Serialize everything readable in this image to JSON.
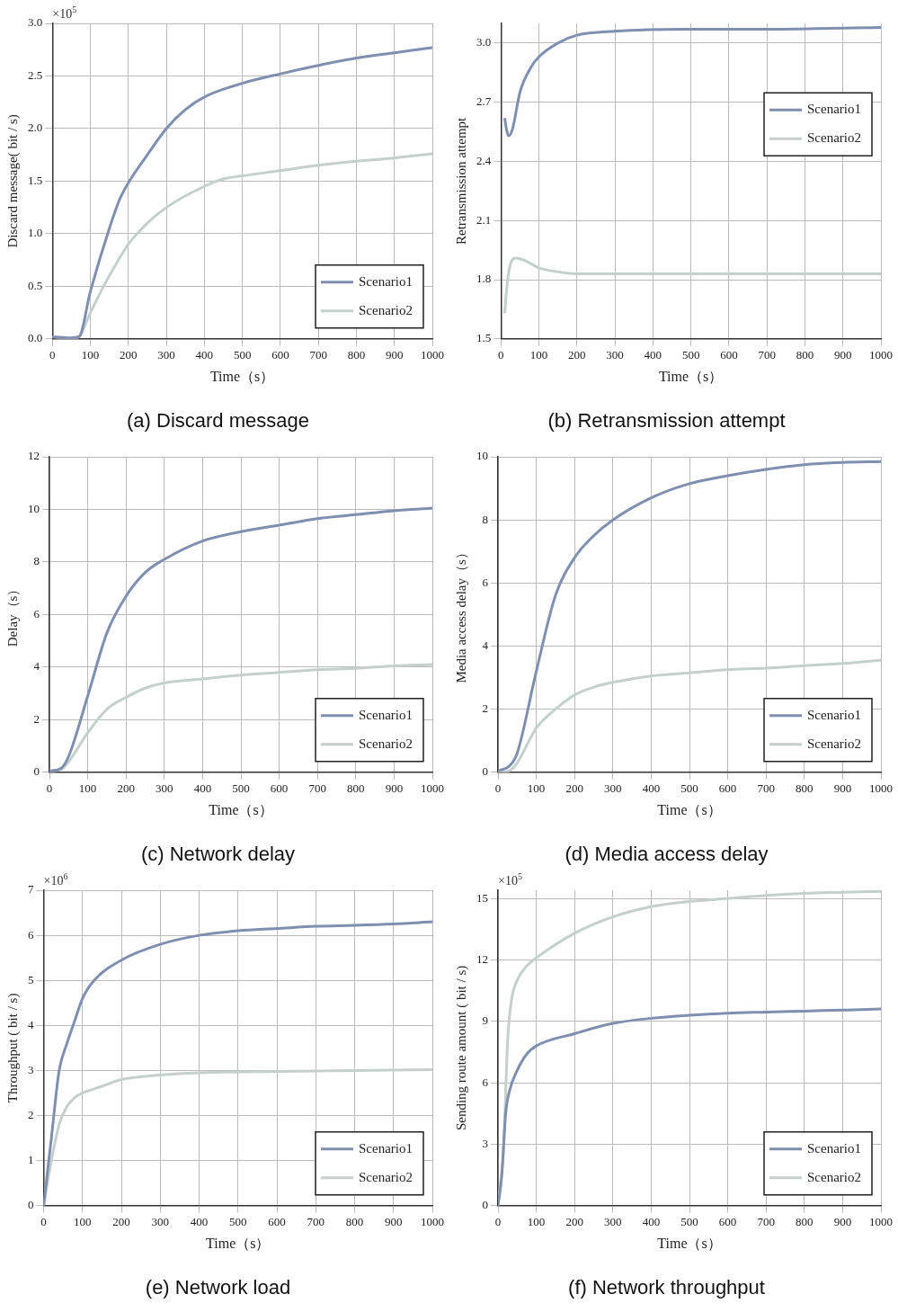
{
  "chart_data": [
    {
      "type": "line",
      "title": "(a) Discard message",
      "xlabel": "Time（s）",
      "ylabel": "Discard message( bit / s)",
      "annotations": [
        "×10$^{5}$"
      ],
      "xlim": [
        0,
        1000
      ],
      "xticks": [
        0,
        100,
        200,
        300,
        400,
        500,
        600,
        700,
        800,
        900,
        1000
      ],
      "ylim": [
        0,
        3
      ],
      "yticks": [
        {
          "value": 0,
          "label": "0.0"
        },
        0.5,
        {
          "value": 1,
          "label": "1.0"
        },
        1.5,
        {
          "value": 2,
          "label": "2.0"
        },
        2.5,
        {
          "value": 3,
          "label": "3.0"
        }
      ],
      "grid": true,
      "legend": "bottom right",
      "series": [
        {
          "name": "Scenario1",
          "color": "#7f8fb0",
          "x": [
            0,
            50,
            70,
            100,
            150,
            180,
            250,
            300,
            350,
            400,
            500,
            600,
            700,
            800,
            900,
            1000
          ],
          "values": [
            0.02,
            0.01,
            0.02,
            0.45,
            1.05,
            1.35,
            1.75,
            2.0,
            2.18,
            2.3,
            2.43,
            2.52,
            2.6,
            2.67,
            2.72,
            2.77
          ]
        },
        {
          "name": "Scenario2",
          "color": "#c5cfcc",
          "x": [
            0,
            50,
            70,
            100,
            150,
            200,
            250,
            300,
            400,
            450,
            500,
            600,
            700,
            800,
            900,
            1000
          ],
          "values": [
            0.02,
            0.0,
            0.02,
            0.25,
            0.6,
            0.9,
            1.1,
            1.25,
            1.45,
            1.52,
            1.55,
            1.6,
            1.65,
            1.69,
            1.72,
            1.76
          ]
        }
      ]
    },
    {
      "type": "line",
      "title": "(b) Retransmission attempt",
      "xlabel": "Time（s）",
      "ylabel": "Retransmission attempt",
      "xlim": [
        0,
        1000
      ],
      "xticks": [
        0,
        100,
        200,
        300,
        400,
        500,
        600,
        700,
        800,
        900,
        1000
      ],
      "ylim": [
        1.5,
        3.1
      ],
      "yticks": [
        1.5,
        1.8,
        2.1,
        2.4,
        2.7,
        {
          "value": 3,
          "label": "3.0"
        }
      ],
      "grid": true,
      "legend": "right",
      "series": [
        {
          "name": "Scenario1",
          "color": "#7f8fb0",
          "x": [
            10,
            15,
            20,
            30,
            50,
            80,
            100,
            150,
            200,
            300,
            500,
            700,
            1000
          ],
          "values": [
            2.62,
            2.56,
            2.53,
            2.56,
            2.75,
            2.88,
            2.93,
            3.0,
            3.04,
            3.06,
            3.07,
            3.07,
            3.08
          ]
        },
        {
          "name": "Scenario2",
          "color": "#c5cfcc",
          "x": [
            10,
            15,
            25,
            40,
            60,
            100,
            150,
            200,
            500,
            1000
          ],
          "values": [
            1.63,
            1.75,
            1.88,
            1.91,
            1.9,
            1.86,
            1.84,
            1.83,
            1.83,
            1.83
          ]
        }
      ]
    },
    {
      "type": "line",
      "title": "(c) Network delay",
      "xlabel": "Time（s）",
      "ylabel": "Delay（s）",
      "xlim": [
        0,
        1000
      ],
      "xticks": [
        0,
        100,
        200,
        300,
        400,
        500,
        600,
        700,
        800,
        900,
        1000
      ],
      "ylim": [
        0,
        12
      ],
      "yticks": [
        0,
        2,
        4,
        6,
        8,
        10,
        12
      ],
      "grid": true,
      "legend": "bottom right",
      "series": [
        {
          "name": "Scenario1",
          "color": "#7f8fb0",
          "x": [
            0,
            30,
            50,
            100,
            150,
            200,
            250,
            300,
            400,
            500,
            600,
            700,
            800,
            900,
            1000
          ],
          "values": [
            0.05,
            0.15,
            0.6,
            2.9,
            5.3,
            6.7,
            7.6,
            8.1,
            8.8,
            9.15,
            9.4,
            9.65,
            9.8,
            9.95,
            10.05
          ]
        },
        {
          "name": "Scenario2",
          "color": "#c5cfcc",
          "x": [
            0,
            30,
            50,
            100,
            150,
            200,
            250,
            300,
            400,
            500,
            600,
            700,
            800,
            900,
            1000
          ],
          "values": [
            0.05,
            0.1,
            0.4,
            1.5,
            2.4,
            2.85,
            3.2,
            3.4,
            3.55,
            3.7,
            3.8,
            3.9,
            3.95,
            4.05,
            4.1
          ]
        }
      ]
    },
    {
      "type": "line",
      "title": "(d) Media access delay",
      "xlabel": "Time（s）",
      "ylabel": "Media access delay（s）",
      "xlim": [
        0,
        1000
      ],
      "xticks": [
        0,
        100,
        200,
        300,
        400,
        500,
        600,
        700,
        800,
        900,
        1000
      ],
      "ylim": [
        0,
        10
      ],
      "yticks": [
        0,
        2,
        4,
        6,
        8,
        10
      ],
      "grid": true,
      "legend": "bottom right",
      "series": [
        {
          "name": "Scenario1",
          "color": "#7f8fb0",
          "x": [
            0,
            30,
            50,
            100,
            150,
            200,
            250,
            300,
            400,
            500,
            600,
            700,
            800,
            900,
            1000
          ],
          "values": [
            0.05,
            0.2,
            0.6,
            3.2,
            5.6,
            6.8,
            7.5,
            8.0,
            8.7,
            9.15,
            9.4,
            9.6,
            9.75,
            9.82,
            9.85
          ]
        },
        {
          "name": "Scenario2",
          "color": "#c5cfcc",
          "x": [
            0,
            30,
            50,
            100,
            150,
            200,
            250,
            300,
            400,
            500,
            600,
            700,
            800,
            900,
            1000
          ],
          "values": [
            0,
            0.05,
            0.3,
            1.4,
            2.0,
            2.45,
            2.7,
            2.85,
            3.05,
            3.15,
            3.25,
            3.3,
            3.38,
            3.45,
            3.55
          ]
        }
      ]
    },
    {
      "type": "line",
      "title": "(e) Network load",
      "xlabel": "Time（s）",
      "ylabel": "Throughput ( bit / s)",
      "annotations": [
        "×10$^{6}$"
      ],
      "xlim": [
        0,
        1000
      ],
      "xticks": [
        0,
        100,
        200,
        300,
        400,
        500,
        600,
        700,
        800,
        900,
        1000
      ],
      "ylim": [
        0,
        7
      ],
      "yticks": [
        0,
        1,
        2,
        3,
        4,
        5,
        6,
        7
      ],
      "grid": true,
      "legend": "bottom right",
      "series": [
        {
          "name": "Scenario1",
          "color": "#7f8fb0",
          "x": [
            0,
            20,
            40,
            60,
            80,
            100,
            130,
            200,
            300,
            400,
            500,
            600,
            700,
            800,
            900,
            1000
          ],
          "values": [
            0,
            1.5,
            3.0,
            3.6,
            4.1,
            4.6,
            5.0,
            5.45,
            5.8,
            6.0,
            6.1,
            6.15,
            6.2,
            6.22,
            6.25,
            6.3
          ]
        },
        {
          "name": "Scenario2",
          "color": "#c5cfcc",
          "x": [
            0,
            20,
            40,
            60,
            80,
            100,
            150,
            200,
            300,
            400,
            600,
            800,
            1000
          ],
          "values": [
            0,
            1.0,
            1.8,
            2.2,
            2.4,
            2.5,
            2.65,
            2.8,
            2.9,
            2.95,
            2.98,
            3.0,
            3.02
          ]
        }
      ]
    },
    {
      "type": "line",
      "title": "(f) Network throughput",
      "xlabel": "Time（s）",
      "ylabel": "Sending route amount ( bit / s)",
      "annotations": [
        "×10$^{5}$"
      ],
      "xlim": [
        0,
        1000
      ],
      "xticks": [
        0,
        100,
        200,
        300,
        400,
        500,
        600,
        700,
        800,
        900,
        1000
      ],
      "ylim": [
        0,
        15.4
      ],
      "yticks": [
        0,
        3,
        6,
        9,
        12,
        15
      ],
      "grid": true,
      "legend": "bottom right",
      "series": [
        {
          "name": "Scenario1",
          "color": "#7f8fb0",
          "x": [
            0,
            10,
            20,
            30,
            50,
            75,
            100,
            200,
            300,
            400,
            500,
            600,
            700,
            800,
            900,
            1000
          ],
          "values": [
            0,
            1.5,
            4.5,
            5.6,
            6.6,
            7.4,
            7.8,
            8.4,
            8.9,
            9.15,
            9.3,
            9.4,
            9.45,
            9.5,
            9.55,
            9.6
          ]
        },
        {
          "name": "Scenario2",
          "color": "#c5cfcc",
          "x": [
            0,
            15,
            25,
            35,
            50,
            75,
            100,
            200,
            300,
            400,
            500,
            600,
            700,
            800,
            900,
            1000
          ],
          "values": [
            0,
            3.0,
            8.0,
            10.0,
            11.0,
            11.7,
            12.1,
            13.3,
            14.1,
            14.6,
            14.85,
            15.0,
            15.15,
            15.25,
            15.3,
            15.35
          ]
        }
      ]
    }
  ]
}
